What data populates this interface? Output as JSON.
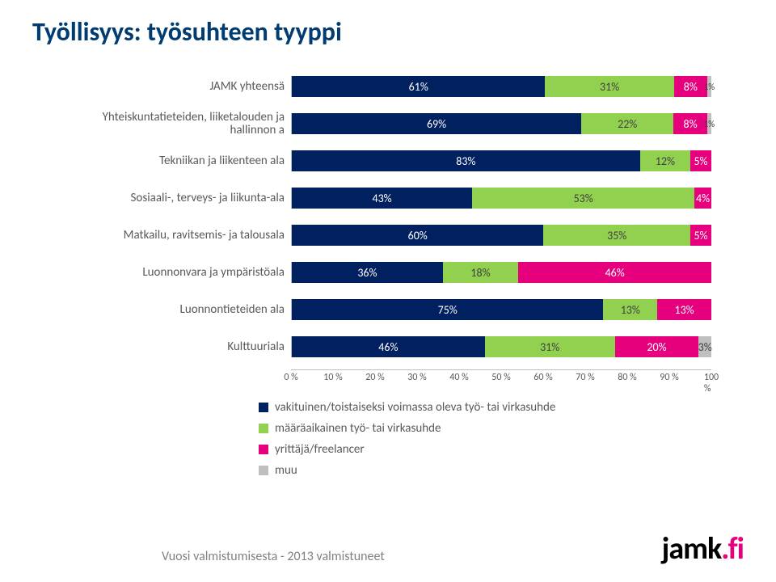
{
  "title": "Työllisyys: työsuhteen tyyppi",
  "series": [
    {
      "key": "s0",
      "label": "vakituinen/toistaiseksi voimassa oleva työ- tai virkasuhde",
      "color": "#002060",
      "text_color": "#ffffff"
    },
    {
      "key": "s1",
      "label": "määräaikainen työ- tai virkasuhde",
      "color": "#92d050",
      "text_color": "#404040"
    },
    {
      "key": "s2",
      "label": "yrittäjä/freelancer",
      "color": "#e6007e",
      "text_color": "#ffffff"
    },
    {
      "key": "s3",
      "label": "muu",
      "color": "#bfbfbf",
      "text_color": "#404040"
    }
  ],
  "categories": [
    {
      "label": "JAMK yhteensä",
      "values": [
        61,
        31,
        8,
        1
      ],
      "display": [
        "61%",
        "31%",
        "8%",
        "1%"
      ]
    },
    {
      "label": "Yhteiskuntatieteiden, liiketalouden ja hallinnon a",
      "values": [
        69,
        22,
        8,
        1
      ],
      "display": [
        "69%",
        "22%",
        "8%",
        "1%"
      ]
    },
    {
      "label": "Tekniikan ja liikenteen ala",
      "values": [
        83,
        12,
        5,
        0
      ],
      "display": [
        "83%",
        "12%",
        "5%",
        ""
      ]
    },
    {
      "label": "Sosiaali-, terveys- ja liikunta-ala",
      "values": [
        43,
        53,
        4,
        0
      ],
      "display": [
        "43%",
        "53%",
        "4%",
        ""
      ]
    },
    {
      "label": "Matkailu, ravitsemis- ja talousala",
      "values": [
        60,
        35,
        5,
        0
      ],
      "display": [
        "60%",
        "35%",
        "5%",
        ""
      ]
    },
    {
      "label": "Luonnonvara ja ympäristöala",
      "values": [
        36,
        18,
        46,
        0
      ],
      "display": [
        "36%",
        "18%",
        "46%",
        ""
      ]
    },
    {
      "label": "Luonnontieteiden ala",
      "values": [
        75,
        13,
        13,
        0
      ],
      "display": [
        "75%",
        "13%",
        "13%",
        ""
      ]
    },
    {
      "label": "Kulttuuriala",
      "values": [
        46,
        31,
        20,
        3
      ],
      "display": [
        "46%",
        "31%",
        "20%",
        "3%"
      ]
    }
  ],
  "axis": {
    "ticks": [
      0,
      10,
      20,
      30,
      40,
      50,
      60,
      70,
      80,
      90,
      100
    ],
    "labels": [
      "0 %",
      "10 %",
      "20 %",
      "30 %",
      "40 %",
      "50 %",
      "60 %",
      "70 %",
      "80 %",
      "90 %",
      "100 %"
    ]
  },
  "footer": "Vuosi valmistumisesta - 2013 valmistuneet",
  "logo": {
    "text": "jamk",
    "suffix": ".fi"
  },
  "style": {
    "title_color": "#003c71",
    "title_fontsize": 32,
    "label_fontsize": 15,
    "value_fontsize": 14,
    "axis_fontsize": 12,
    "bg": "#ffffff"
  }
}
